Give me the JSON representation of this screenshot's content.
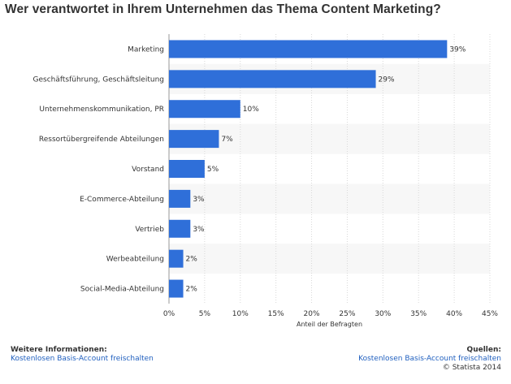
{
  "title": "Wer verantwortet in Ihrem Unternehmen das Thema Content Marketing?",
  "colors": {
    "bar": "#2f6fd9",
    "band": "#f7f7f7",
    "grid": "#d8d8d8",
    "link": "#1f5fbf"
  },
  "chart_data": {
    "type": "bar",
    "orientation": "horizontal",
    "categories": [
      "Marketing",
      "Geschäftsführung, Geschäftsleitung",
      "Unternehmenskommunikation, PR",
      "Ressortübergreifende Abteilungen",
      "Vorstand",
      "E-Commerce-Abteilung",
      "Vertrieb",
      "Werbeabteilung",
      "Social-Media-Abteilung"
    ],
    "values": [
      39,
      29,
      10,
      7,
      5,
      3,
      3,
      2,
      2
    ],
    "value_labels": [
      "39%",
      "29%",
      "10%",
      "7%",
      "5%",
      "3%",
      "3%",
      "2%",
      "2%"
    ],
    "xlabel": "Anteil der Befragten",
    "ylabel": "",
    "xlim": [
      0,
      45
    ],
    "ticks": [
      0,
      5,
      10,
      15,
      20,
      25,
      30,
      35,
      40,
      45
    ],
    "tick_labels": [
      "0%",
      "5%",
      "10%",
      "15%",
      "20%",
      "25%",
      "30%",
      "35%",
      "40%",
      "45%"
    ],
    "grid": true
  },
  "footer": {
    "info_heading": "Weitere Informationen:",
    "info_link": "Kostenlosen Basis-Account freischalten",
    "sources_heading": "Quellen:",
    "sources_link": "Kostenlosen Basis-Account freischalten",
    "copyright": "© Statista 2014"
  }
}
